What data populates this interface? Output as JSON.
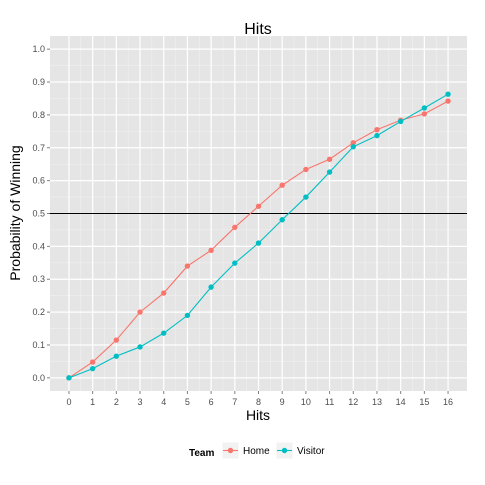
{
  "chart_data": {
    "type": "line",
    "title": "Hits",
    "xlabel": "Hits",
    "ylabel": "Probability of Winning",
    "x": [
      0,
      1,
      2,
      3,
      4,
      5,
      6,
      7,
      8,
      9,
      10,
      11,
      12,
      13,
      14,
      15,
      16
    ],
    "xlim": [
      -0.8,
      16.8
    ],
    "ylim": [
      -0.04,
      1.04
    ],
    "yticks": [
      0.0,
      0.1,
      0.2,
      0.3,
      0.4,
      0.5,
      0.6,
      0.7,
      0.8,
      0.9,
      1.0
    ],
    "ytick_labels": [
      "0.0",
      "0.1",
      "0.2",
      "0.3",
      "0.4",
      "0.5",
      "0.6",
      "0.7",
      "0.8",
      "0.9",
      "1.0"
    ],
    "xtick_labels": [
      "0",
      "1",
      "2",
      "3",
      "4",
      "5",
      "6",
      "7",
      "8",
      "9",
      "10",
      "11",
      "12",
      "13",
      "14",
      "15",
      "16"
    ],
    "reference_line": {
      "y": 0.5,
      "color": "#000000"
    },
    "grid": true,
    "legend_position": "bottom",
    "legend_title": "Team",
    "series": [
      {
        "name": "Home",
        "color": "#f8766d",
        "values": [
          0.0,
          0.048,
          0.115,
          0.2,
          0.258,
          0.34,
          0.388,
          0.458,
          0.522,
          0.586,
          0.634,
          0.665,
          0.715,
          0.755,
          0.784,
          0.803,
          0.842
        ]
      },
      {
        "name": "Visitor",
        "color": "#00bfc4",
        "values": [
          0.0,
          0.028,
          0.066,
          0.094,
          0.136,
          0.19,
          0.276,
          0.349,
          0.41,
          0.481,
          0.55,
          0.626,
          0.703,
          0.737,
          0.78,
          0.821,
          0.863
        ]
      }
    ]
  }
}
